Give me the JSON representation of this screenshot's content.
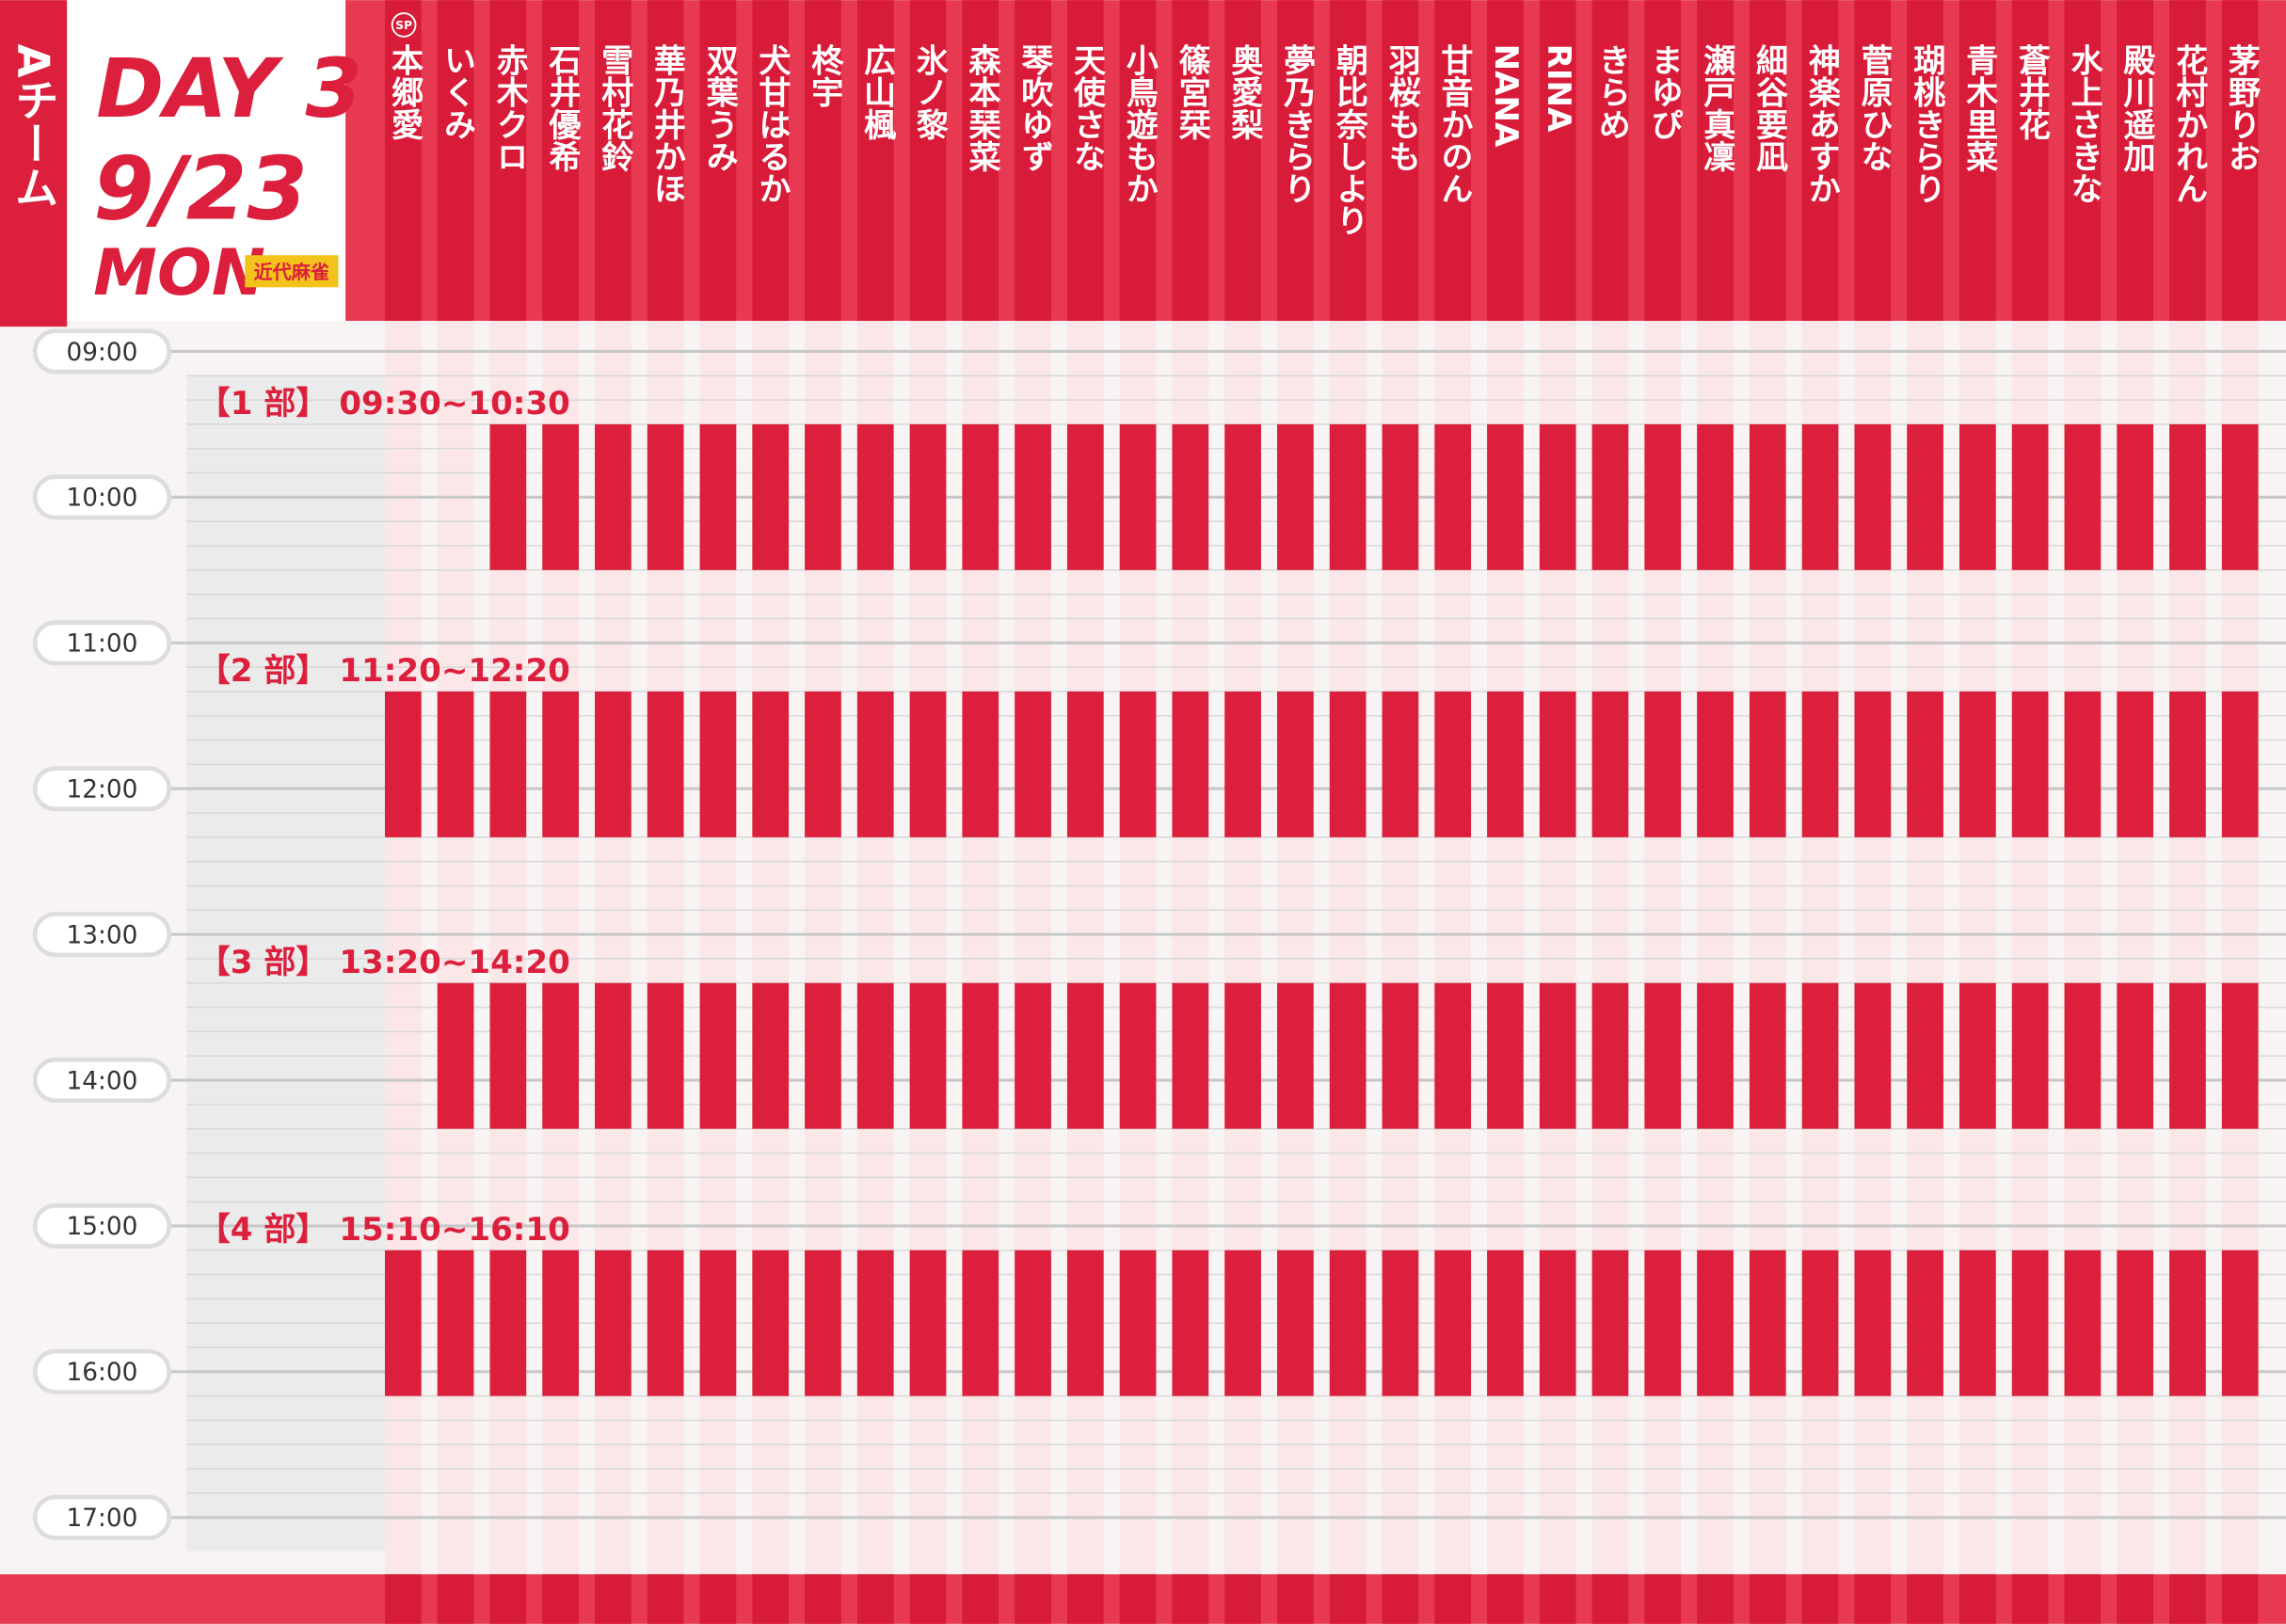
{
  "header": {
    "team": "Aチーム",
    "day": "DAY 3",
    "date": "9/23",
    "weekday": "MON",
    "logo": "近代麻雀"
  },
  "members": [
    {
      "name": "本郷愛",
      "mark": "SP"
    },
    {
      "name": "いくみ"
    },
    {
      "name": "赤木クロ"
    },
    {
      "name": "石井優希"
    },
    {
      "name": "雪村花鈴"
    },
    {
      "name": "華乃井かほ"
    },
    {
      "name": "双葉うみ"
    },
    {
      "name": "犬甘はるか"
    },
    {
      "name": "柊宇"
    },
    {
      "name": "広山楓"
    },
    {
      "name": "氷ノ黎"
    },
    {
      "name": "森本琹菜"
    },
    {
      "name": "琴吹ゆず"
    },
    {
      "name": "天使さな"
    },
    {
      "name": "小鳥遊もか"
    },
    {
      "name": "篠宮栞"
    },
    {
      "name": "奥愛梨"
    },
    {
      "name": "夢乃きらり"
    },
    {
      "name": "朝比奈しより"
    },
    {
      "name": "羽桜もも"
    },
    {
      "name": "甘音かのん"
    },
    {
      "name": "NANA"
    },
    {
      "name": "RINA"
    },
    {
      "name": "きらめ"
    },
    {
      "name": "まゆぴ"
    },
    {
      "name": "瀬戸真凜"
    },
    {
      "name": "細谷要凪"
    },
    {
      "name": "神楽あすか"
    },
    {
      "name": "菅原ひな"
    },
    {
      "name": "瑚桃きらり"
    },
    {
      "name": "青木里菜"
    },
    {
      "name": "蒼井花"
    },
    {
      "name": "水上さきな"
    },
    {
      "name": "殿川遥加"
    },
    {
      "name": "花村かれん"
    },
    {
      "name": "茅野りお"
    }
  ],
  "times": [
    "09:00",
    "10:00",
    "11:00",
    "12:00",
    "13:00",
    "14:00",
    "15:00",
    "16:00",
    "17:00"
  ],
  "sessions": [
    {
      "label": "【1 部】 09:30~10:30",
      "absent": [
        "本郷愛",
        "いくみ"
      ]
    },
    {
      "label": "【2 部】 11:20~12:20",
      "absent": []
    },
    {
      "label": "【3 部】 13:20~14:20",
      "absent": [
        "本郷愛"
      ]
    },
    {
      "label": "【4 部】 15:10~16:10",
      "absent": []
    }
  ]
}
